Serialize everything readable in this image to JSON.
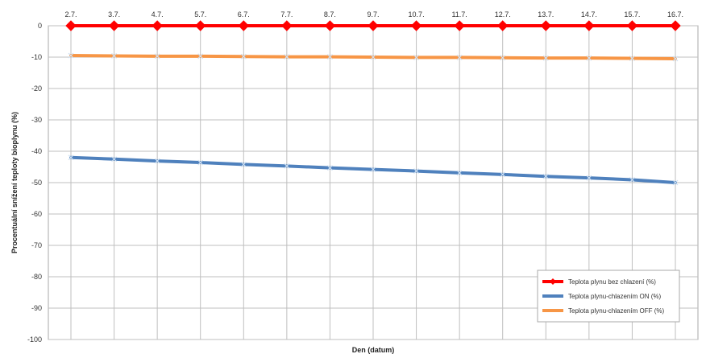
{
  "chart_data": {
    "type": "line",
    "xlabel": "Den (datum)",
    "ylabel": "Procentuální snížení teploty bioplynu (%)",
    "categories": [
      "2.7.",
      "3.7.",
      "4.7.",
      "5.7.",
      "6.7.",
      "7.7.",
      "8.7.",
      "9.7.",
      "10.7.",
      "11.7.",
      "12.7.",
      "13.7.",
      "14.7.",
      "15.7.",
      "16.7."
    ],
    "ylim": [
      -100,
      0
    ],
    "yticks": [
      0,
      -10,
      -20,
      -30,
      -40,
      -50,
      -60,
      -70,
      -80,
      -90,
      -100
    ],
    "grid": true,
    "x_tick_position": "top",
    "legend_position": "bottom-right",
    "series": [
      {
        "name": "Teplota plynu bez chlazení (%)",
        "color": "#ff0000",
        "marker": "diamond",
        "values": [
          0,
          0,
          0,
          0,
          0,
          0,
          0,
          0,
          0,
          0,
          0,
          0,
          0,
          0,
          0
        ]
      },
      {
        "name": "Teplota plynu-chlazením ON (%)",
        "color": "#4f81bd",
        "marker": "x",
        "values": [
          -42.0,
          -42.5,
          -43.1,
          -43.6,
          -44.2,
          -44.7,
          -45.3,
          -45.8,
          -46.3,
          -46.9,
          -47.4,
          -48.0,
          -48.5,
          -49.1,
          -50.0
        ]
      },
      {
        "name": "Teplota plynu-chlazením OFF (%)",
        "color": "#f79646",
        "marker": "x",
        "values": [
          -9.5,
          -9.6,
          -9.7,
          -9.7,
          -9.8,
          -9.9,
          -9.9,
          -10.0,
          -10.1,
          -10.1,
          -10.2,
          -10.3,
          -10.3,
          -10.4,
          -10.5
        ]
      }
    ]
  }
}
